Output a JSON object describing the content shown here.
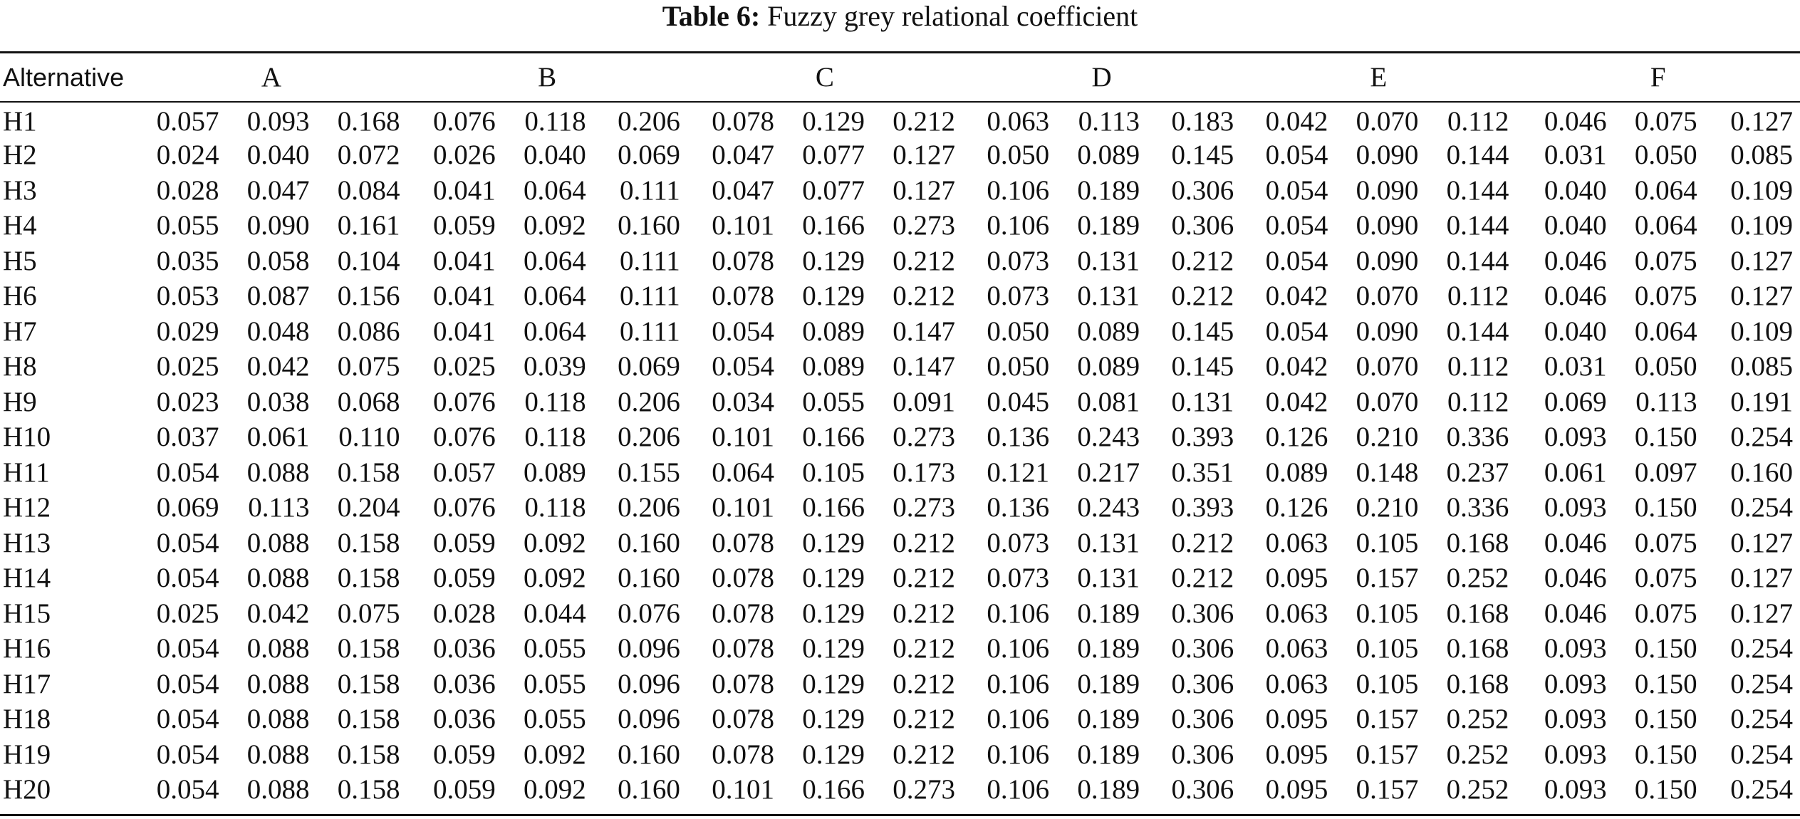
{
  "caption": {
    "label": "Table 6:",
    "text": "Fuzzy grey relational coefficient"
  },
  "table": {
    "corner_header": "Alternative",
    "groups": [
      "A",
      "B",
      "C",
      "D",
      "E",
      "F"
    ],
    "rows": [
      {
        "name": "H1",
        "values": [
          "0.057",
          "0.093",
          "0.168",
          "0.076",
          "0.118",
          "0.206",
          "0.078",
          "0.129",
          "0.212",
          "0.063",
          "0.113",
          "0.183",
          "0.042",
          "0.070",
          "0.112",
          "0.046",
          "0.075",
          "0.127"
        ]
      },
      {
        "name": "H2",
        "values": [
          "0.024",
          "0.040",
          "0.072",
          "0.026",
          "0.040",
          "0.069",
          "0.047",
          "0.077",
          "0.127",
          "0.050",
          "0.089",
          "0.145",
          "0.054",
          "0.090",
          "0.144",
          "0.031",
          "0.050",
          "0.085"
        ]
      },
      {
        "name": "H3",
        "values": [
          "0.028",
          "0.047",
          "0.084",
          "0.041",
          "0.064",
          "0.111",
          "0.047",
          "0.077",
          "0.127",
          "0.106",
          "0.189",
          "0.306",
          "0.054",
          "0.090",
          "0.144",
          "0.040",
          "0.064",
          "0.109"
        ]
      },
      {
        "name": "H4",
        "values": [
          "0.055",
          "0.090",
          "0.161",
          "0.059",
          "0.092",
          "0.160",
          "0.101",
          "0.166",
          "0.273",
          "0.106",
          "0.189",
          "0.306",
          "0.054",
          "0.090",
          "0.144",
          "0.040",
          "0.064",
          "0.109"
        ]
      },
      {
        "name": "H5",
        "values": [
          "0.035",
          "0.058",
          "0.104",
          "0.041",
          "0.064",
          "0.111",
          "0.078",
          "0.129",
          "0.212",
          "0.073",
          "0.131",
          "0.212",
          "0.054",
          "0.090",
          "0.144",
          "0.046",
          "0.075",
          "0.127"
        ]
      },
      {
        "name": "H6",
        "values": [
          "0.053",
          "0.087",
          "0.156",
          "0.041",
          "0.064",
          "0.111",
          "0.078",
          "0.129",
          "0.212",
          "0.073",
          "0.131",
          "0.212",
          "0.042",
          "0.070",
          "0.112",
          "0.046",
          "0.075",
          "0.127"
        ]
      },
      {
        "name": "H7",
        "values": [
          "0.029",
          "0.048",
          "0.086",
          "0.041",
          "0.064",
          "0.111",
          "0.054",
          "0.089",
          "0.147",
          "0.050",
          "0.089",
          "0.145",
          "0.054",
          "0.090",
          "0.144",
          "0.040",
          "0.064",
          "0.109"
        ]
      },
      {
        "name": "H8",
        "values": [
          "0.025",
          "0.042",
          "0.075",
          "0.025",
          "0.039",
          "0.069",
          "0.054",
          "0.089",
          "0.147",
          "0.050",
          "0.089",
          "0.145",
          "0.042",
          "0.070",
          "0.112",
          "0.031",
          "0.050",
          "0.085"
        ]
      },
      {
        "name": "H9",
        "values": [
          "0.023",
          "0.038",
          "0.068",
          "0.076",
          "0.118",
          "0.206",
          "0.034",
          "0.055",
          "0.091",
          "0.045",
          "0.081",
          "0.131",
          "0.042",
          "0.070",
          "0.112",
          "0.069",
          "0.113",
          "0.191"
        ]
      },
      {
        "name": "H10",
        "values": [
          "0.037",
          "0.061",
          "0.110",
          "0.076",
          "0.118",
          "0.206",
          "0.101",
          "0.166",
          "0.273",
          "0.136",
          "0.243",
          "0.393",
          "0.126",
          "0.210",
          "0.336",
          "0.093",
          "0.150",
          "0.254"
        ]
      },
      {
        "name": "H11",
        "values": [
          "0.054",
          "0.088",
          "0.158",
          "0.057",
          "0.089",
          "0.155",
          "0.064",
          "0.105",
          "0.173",
          "0.121",
          "0.217",
          "0.351",
          "0.089",
          "0.148",
          "0.237",
          "0.061",
          "0.097",
          "0.160"
        ]
      },
      {
        "name": "H12",
        "values": [
          "0.069",
          "0.113",
          "0.204",
          "0.076",
          "0.118",
          "0.206",
          "0.101",
          "0.166",
          "0.273",
          "0.136",
          "0.243",
          "0.393",
          "0.126",
          "0.210",
          "0.336",
          "0.093",
          "0.150",
          "0.254"
        ]
      },
      {
        "name": "H13",
        "values": [
          "0.054",
          "0.088",
          "0.158",
          "0.059",
          "0.092",
          "0.160",
          "0.078",
          "0.129",
          "0.212",
          "0.073",
          "0.131",
          "0.212",
          "0.063",
          "0.105",
          "0.168",
          "0.046",
          "0.075",
          "0.127"
        ]
      },
      {
        "name": "H14",
        "values": [
          "0.054",
          "0.088",
          "0.158",
          "0.059",
          "0.092",
          "0.160",
          "0.078",
          "0.129",
          "0.212",
          "0.073",
          "0.131",
          "0.212",
          "0.095",
          "0.157",
          "0.252",
          "0.046",
          "0.075",
          "0.127"
        ]
      },
      {
        "name": "H15",
        "values": [
          "0.025",
          "0.042",
          "0.075",
          "0.028",
          "0.044",
          "0.076",
          "0.078",
          "0.129",
          "0.212",
          "0.106",
          "0.189",
          "0.306",
          "0.063",
          "0.105",
          "0.168",
          "0.046",
          "0.075",
          "0.127"
        ]
      },
      {
        "name": "H16",
        "values": [
          "0.054",
          "0.088",
          "0.158",
          "0.036",
          "0.055",
          "0.096",
          "0.078",
          "0.129",
          "0.212",
          "0.106",
          "0.189",
          "0.306",
          "0.063",
          "0.105",
          "0.168",
          "0.093",
          "0.150",
          "0.254"
        ]
      },
      {
        "name": "H17",
        "values": [
          "0.054",
          "0.088",
          "0.158",
          "0.036",
          "0.055",
          "0.096",
          "0.078",
          "0.129",
          "0.212",
          "0.106",
          "0.189",
          "0.306",
          "0.063",
          "0.105",
          "0.168",
          "0.093",
          "0.150",
          "0.254"
        ]
      },
      {
        "name": "H18",
        "values": [
          "0.054",
          "0.088",
          "0.158",
          "0.036",
          "0.055",
          "0.096",
          "0.078",
          "0.129",
          "0.212",
          "0.106",
          "0.189",
          "0.306",
          "0.095",
          "0.157",
          "0.252",
          "0.093",
          "0.150",
          "0.254"
        ]
      },
      {
        "name": "H19",
        "values": [
          "0.054",
          "0.088",
          "0.158",
          "0.059",
          "0.092",
          "0.160",
          "0.078",
          "0.129",
          "0.212",
          "0.106",
          "0.189",
          "0.306",
          "0.095",
          "0.157",
          "0.252",
          "0.093",
          "0.150",
          "0.254"
        ]
      },
      {
        "name": "H20",
        "values": [
          "0.054",
          "0.088",
          "0.158",
          "0.059",
          "0.092",
          "0.160",
          "0.101",
          "0.166",
          "0.273",
          "0.106",
          "0.189",
          "0.306",
          "0.095",
          "0.157",
          "0.252",
          "0.093",
          "0.150",
          "0.254"
        ]
      }
    ]
  }
}
